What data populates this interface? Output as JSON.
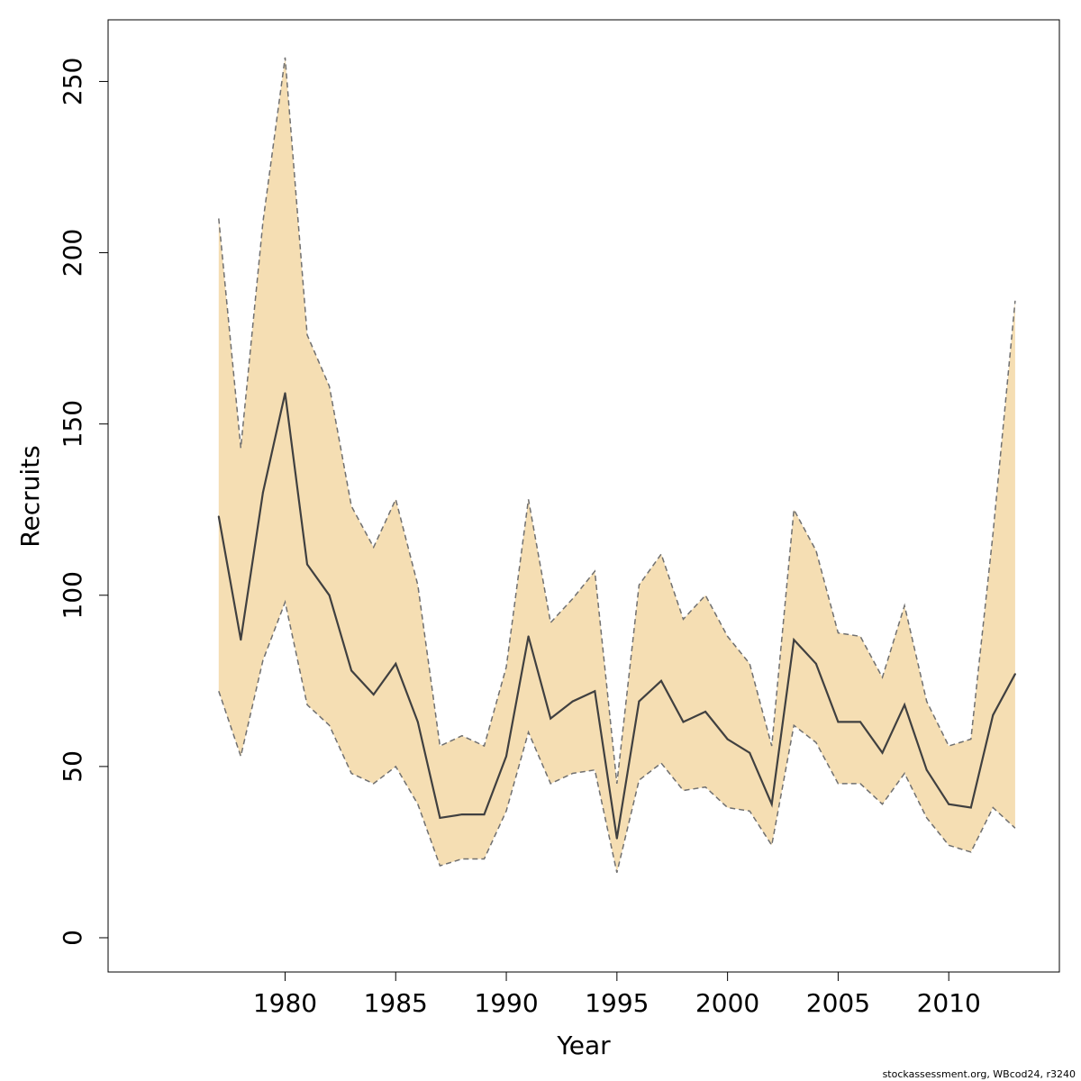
{
  "chart_data": {
    "type": "area",
    "xlabel": "Year",
    "ylabel": "Recruits",
    "xlim": [
      1972,
      2015
    ],
    "ylim": [
      -10,
      268
    ],
    "xticks": [
      1980,
      1985,
      1990,
      1995,
      2000,
      2005,
      2010
    ],
    "yticks": [
      0,
      50,
      100,
      150,
      200,
      250
    ],
    "grid": false,
    "colors": {
      "band": "#f5deb3",
      "estimate": "#404040",
      "bounds": "#707070"
    },
    "x": [
      1977,
      1978,
      1979,
      1980,
      1981,
      1982,
      1983,
      1984,
      1985,
      1986,
      1987,
      1988,
      1989,
      1990,
      1991,
      1992,
      1993,
      1994,
      1995,
      1996,
      1997,
      1998,
      1999,
      2000,
      2001,
      2002,
      2003,
      2004,
      2005,
      2006,
      2007,
      2008,
      2009,
      2010,
      2011,
      2012,
      2013
    ],
    "series": [
      {
        "role": "upper",
        "style": "dashed",
        "values": [
          210,
          143,
          209,
          257,
          176,
          161,
          126,
          114,
          128,
          103,
          56,
          59,
          56,
          79,
          128,
          92,
          99,
          107,
          45,
          103,
          112,
          93,
          100,
          88,
          80,
          56,
          125,
          113,
          89,
          88,
          76,
          97,
          69,
          56,
          58,
          118,
          186
        ]
      },
      {
        "role": "estimate",
        "style": "solid",
        "values": [
          123,
          87,
          130,
          159,
          109,
          100,
          78,
          71,
          80,
          63,
          35,
          36,
          36,
          53,
          88,
          64,
          69,
          72,
          29,
          69,
          75,
          63,
          66,
          58,
          54,
          39,
          87,
          80,
          63,
          63,
          54,
          68,
          49,
          39,
          38,
          65,
          77
        ]
      },
      {
        "role": "lower",
        "style": "dashed",
        "values": [
          72,
          53,
          81,
          98,
          68,
          62,
          48,
          45,
          50,
          39,
          21,
          23,
          23,
          37,
          60,
          45,
          48,
          49,
          19,
          46,
          51,
          43,
          44,
          38,
          37,
          27,
          62,
          57,
          45,
          45,
          39,
          48,
          35,
          27,
          25,
          38,
          32
        ]
      }
    ]
  },
  "footer_text": "stockassessment.org, WBcod24, r3240"
}
